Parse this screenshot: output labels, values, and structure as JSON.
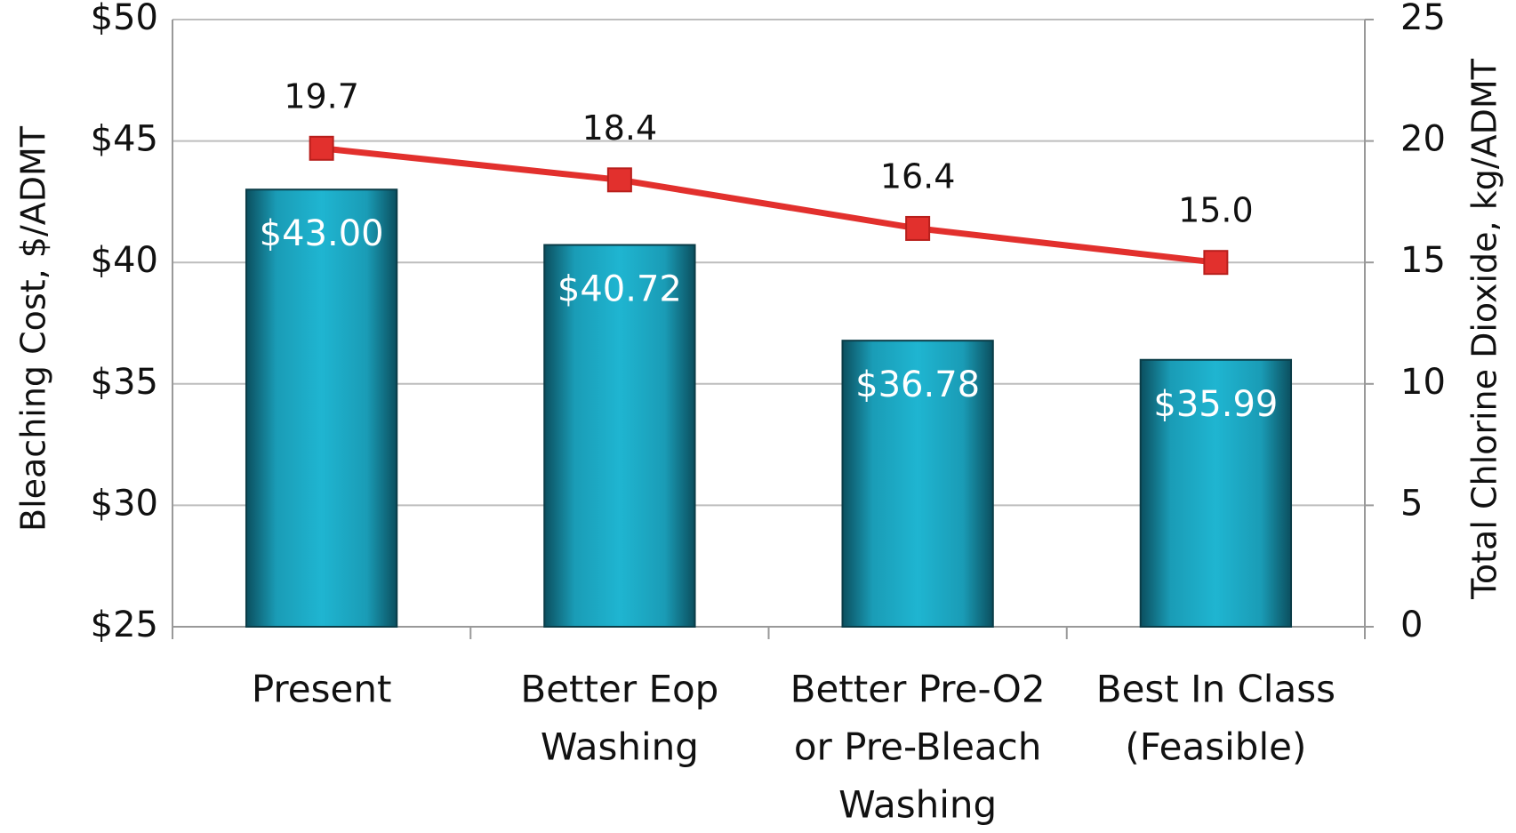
{
  "chart_data": {
    "type": "bar",
    "categories": [
      [
        "Present"
      ],
      [
        "Better Eop",
        "Washing"
      ],
      [
        "Better Pre-O2",
        "or Pre-Bleach",
        "Washing"
      ],
      [
        "Best In Class",
        "(Feasible)"
      ]
    ],
    "series": [
      {
        "type": "bar",
        "color": "#1aa9c4",
        "values": [
          43.0,
          40.72,
          36.78,
          35.99
        ],
        "value_labels": [
          "$43.00",
          "$40.72",
          "$36.78",
          "$35.99"
        ]
      },
      {
        "type": "line",
        "axis": "y2",
        "color": "#e2302d",
        "values": [
          19.7,
          18.4,
          16.4,
          15.0
        ],
        "value_labels": [
          "19.7",
          "18.4",
          "16.4",
          "15.0"
        ]
      }
    ],
    "ylabel": "Bleaching Cost, $/ADMT",
    "y2label": "Total Chlorine Dioxide, kg/ADMT",
    "ylim": [
      25,
      50
    ],
    "yticks": [
      {
        "value": 25,
        "label": "$25"
      },
      {
        "value": 30,
        "label": "$30"
      },
      {
        "value": 35,
        "label": "$35"
      },
      {
        "value": 40,
        "label": "$40"
      },
      {
        "value": 45,
        "label": "$45"
      },
      {
        "value": 50,
        "label": "$50"
      }
    ],
    "y2lim": [
      0,
      25
    ],
    "y2ticks": [
      0,
      5,
      10,
      15,
      20,
      25
    ],
    "grid": true
  }
}
